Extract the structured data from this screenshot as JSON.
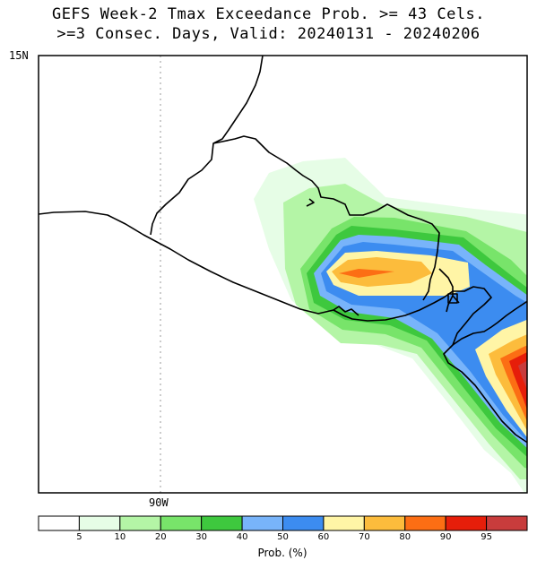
{
  "title_line1": "GEFS Week-2 Tmax Exceedance Prob. >= 43 Cels.",
  "title_line2": ">=3 Consec. Days, Valid: 20240131 - 20240206",
  "lat_label": "15N",
  "lon_label": "90W",
  "colorbar": {
    "title": "Prob. (%)",
    "labels": [
      "5",
      "10",
      "20",
      "30",
      "40",
      "50",
      "60",
      "70",
      "80",
      "90",
      "95"
    ],
    "colors": [
      "#ffffff",
      "#e6fde6",
      "#b4f5a6",
      "#78e46a",
      "#3ec83e",
      "#78b4fa",
      "#3c8cf0",
      "#fff5a6",
      "#fcbc3c",
      "#fc6e14",
      "#e61e0a",
      "#c83c3c"
    ]
  }
}
